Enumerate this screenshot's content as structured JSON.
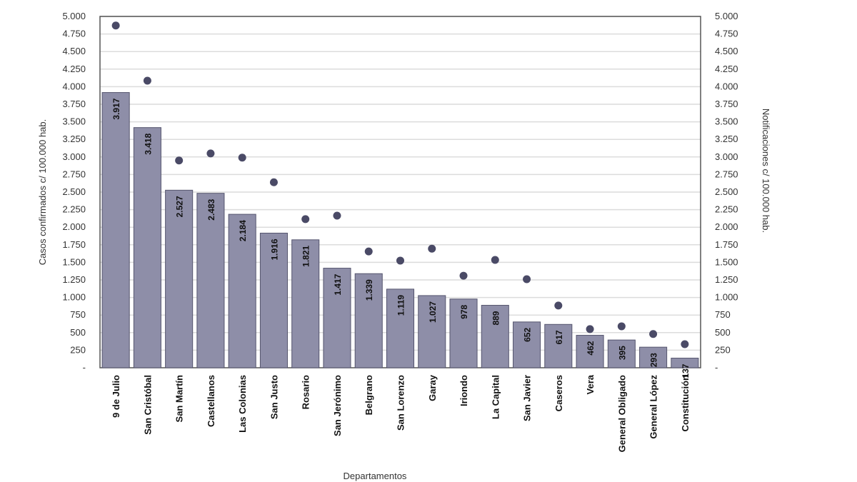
{
  "chart_data": {
    "type": "bar",
    "xlabel": "Departamentos",
    "ylabel": "Casos confirmados c/ 100.000 hab.",
    "y2label": "Notificaciones c/ 100.000 hab.",
    "ylim": [
      0,
      5000
    ],
    "y2lim": [
      0,
      5000
    ],
    "yticks": [
      "-",
      "250",
      "500",
      "750",
      "1.000",
      "1.250",
      "1.500",
      "1.750",
      "2.000",
      "2.250",
      "2.500",
      "2.750",
      "3.000",
      "3.250",
      "3.500",
      "3.750",
      "4.000",
      "4.250",
      "4.500",
      "4.750",
      "5.000"
    ],
    "grid": true,
    "categories": [
      "9 de Julio",
      "San Cristóbal",
      "San Martín",
      "Castellanos",
      "Las Colonias",
      "San Justo",
      "Rosario",
      "San Jerónimo",
      "Belgrano",
      "San Lorenzo",
      "Garay",
      "Iriondo",
      "La Capital",
      "San Javier",
      "Caseros",
      "Vera",
      "General Obligado",
      "General López",
      "Constitución"
    ],
    "series": [
      {
        "type": "bar",
        "axis": "left",
        "color": "#8e8ea8",
        "values": [
          3917,
          3418,
          2527,
          2483,
          2184,
          1916,
          1821,
          1417,
          1339,
          1119,
          1027,
          978,
          889,
          652,
          617,
          462,
          395,
          293,
          137
        ],
        "labels": [
          "3.917",
          "3.418",
          "2.527",
          "2.483",
          "2.184",
          "1.916",
          "1.821",
          "1.417",
          "1.339",
          "1.119",
          "1.027",
          "978",
          "889",
          "652",
          "617",
          "462",
          "395",
          "293",
          "137"
        ]
      },
      {
        "type": "scatter",
        "axis": "right",
        "color": "#4a4a66",
        "values": [
          4870,
          4085,
          2950,
          3050,
          2990,
          2640,
          2115,
          2165,
          1655,
          1525,
          1695,
          1310,
          1535,
          1260,
          885,
          550,
          590,
          480,
          335
        ]
      }
    ]
  }
}
